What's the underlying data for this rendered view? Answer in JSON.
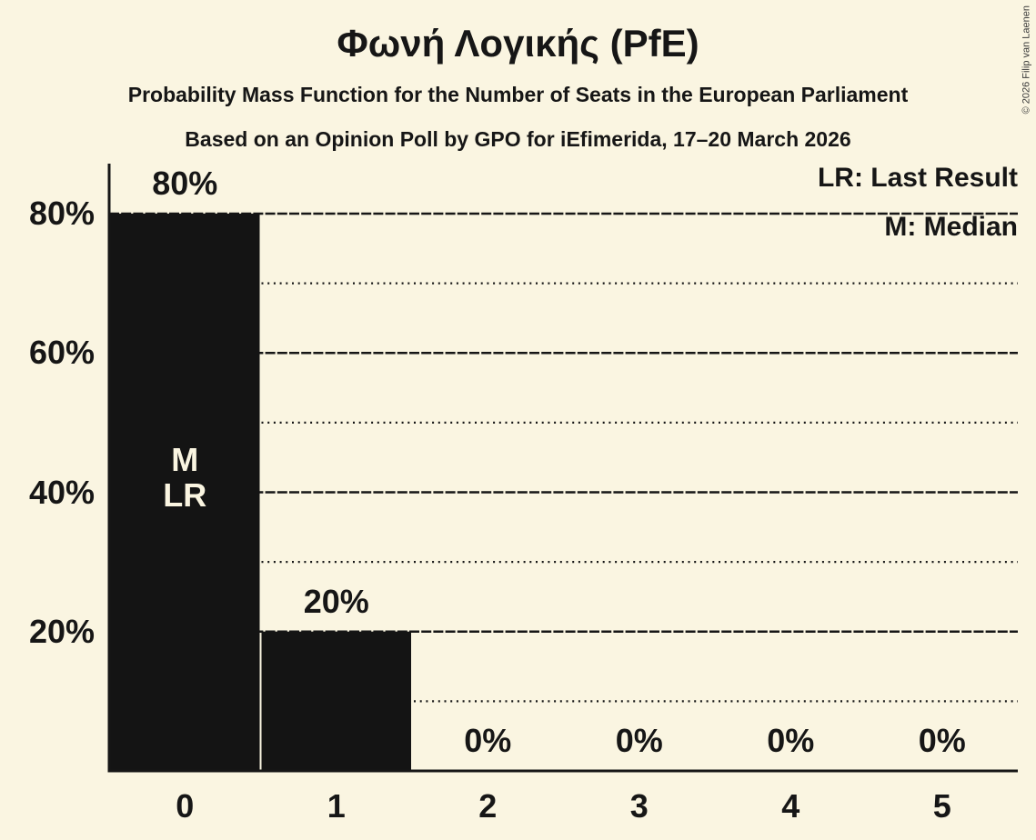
{
  "meta": {
    "copyright": "© 2026 Filip van Laenen"
  },
  "header": {
    "title": "Φωνή Λογικής (PfE)",
    "subtitle": "Probability Mass Function for the Number of Seats in the European Parliament",
    "source_line": "Based on an Opinion Poll by GPO for iEfimerida, 17–20 March 2026"
  },
  "legend": {
    "last_result": "LR: Last Result",
    "median": "M: Median"
  },
  "colors": {
    "background": "#FAF5E1",
    "bar": "#141414",
    "text": "#161616",
    "bar_annotation_text": "#FAF5E1"
  },
  "chart_data": {
    "type": "bar",
    "title": "Φωνή Λογικής (PfE)",
    "categories": [
      "0",
      "1",
      "2",
      "3",
      "4",
      "5"
    ],
    "values": [
      80,
      20,
      0,
      0,
      0,
      0
    ],
    "bar_labels": [
      "80%",
      "20%",
      "0%",
      "0%",
      "0%",
      "0%"
    ],
    "in_bar_annotations": [
      {
        "category_index": 0,
        "lines": [
          "M",
          "LR"
        ]
      }
    ],
    "y_axis": {
      "major_ticks": [
        {
          "value": 20,
          "label": "20%"
        },
        {
          "value": 40,
          "label": "40%"
        },
        {
          "value": 60,
          "label": "60%"
        },
        {
          "value": 80,
          "label": "80%"
        }
      ],
      "minor_gridlines": [
        10,
        30,
        50,
        70
      ],
      "range": [
        0,
        87
      ]
    },
    "grid": {
      "major_style": "dashed",
      "minor_style": "dotted"
    },
    "legend_position": "top-right",
    "bar_color": "#141414"
  }
}
